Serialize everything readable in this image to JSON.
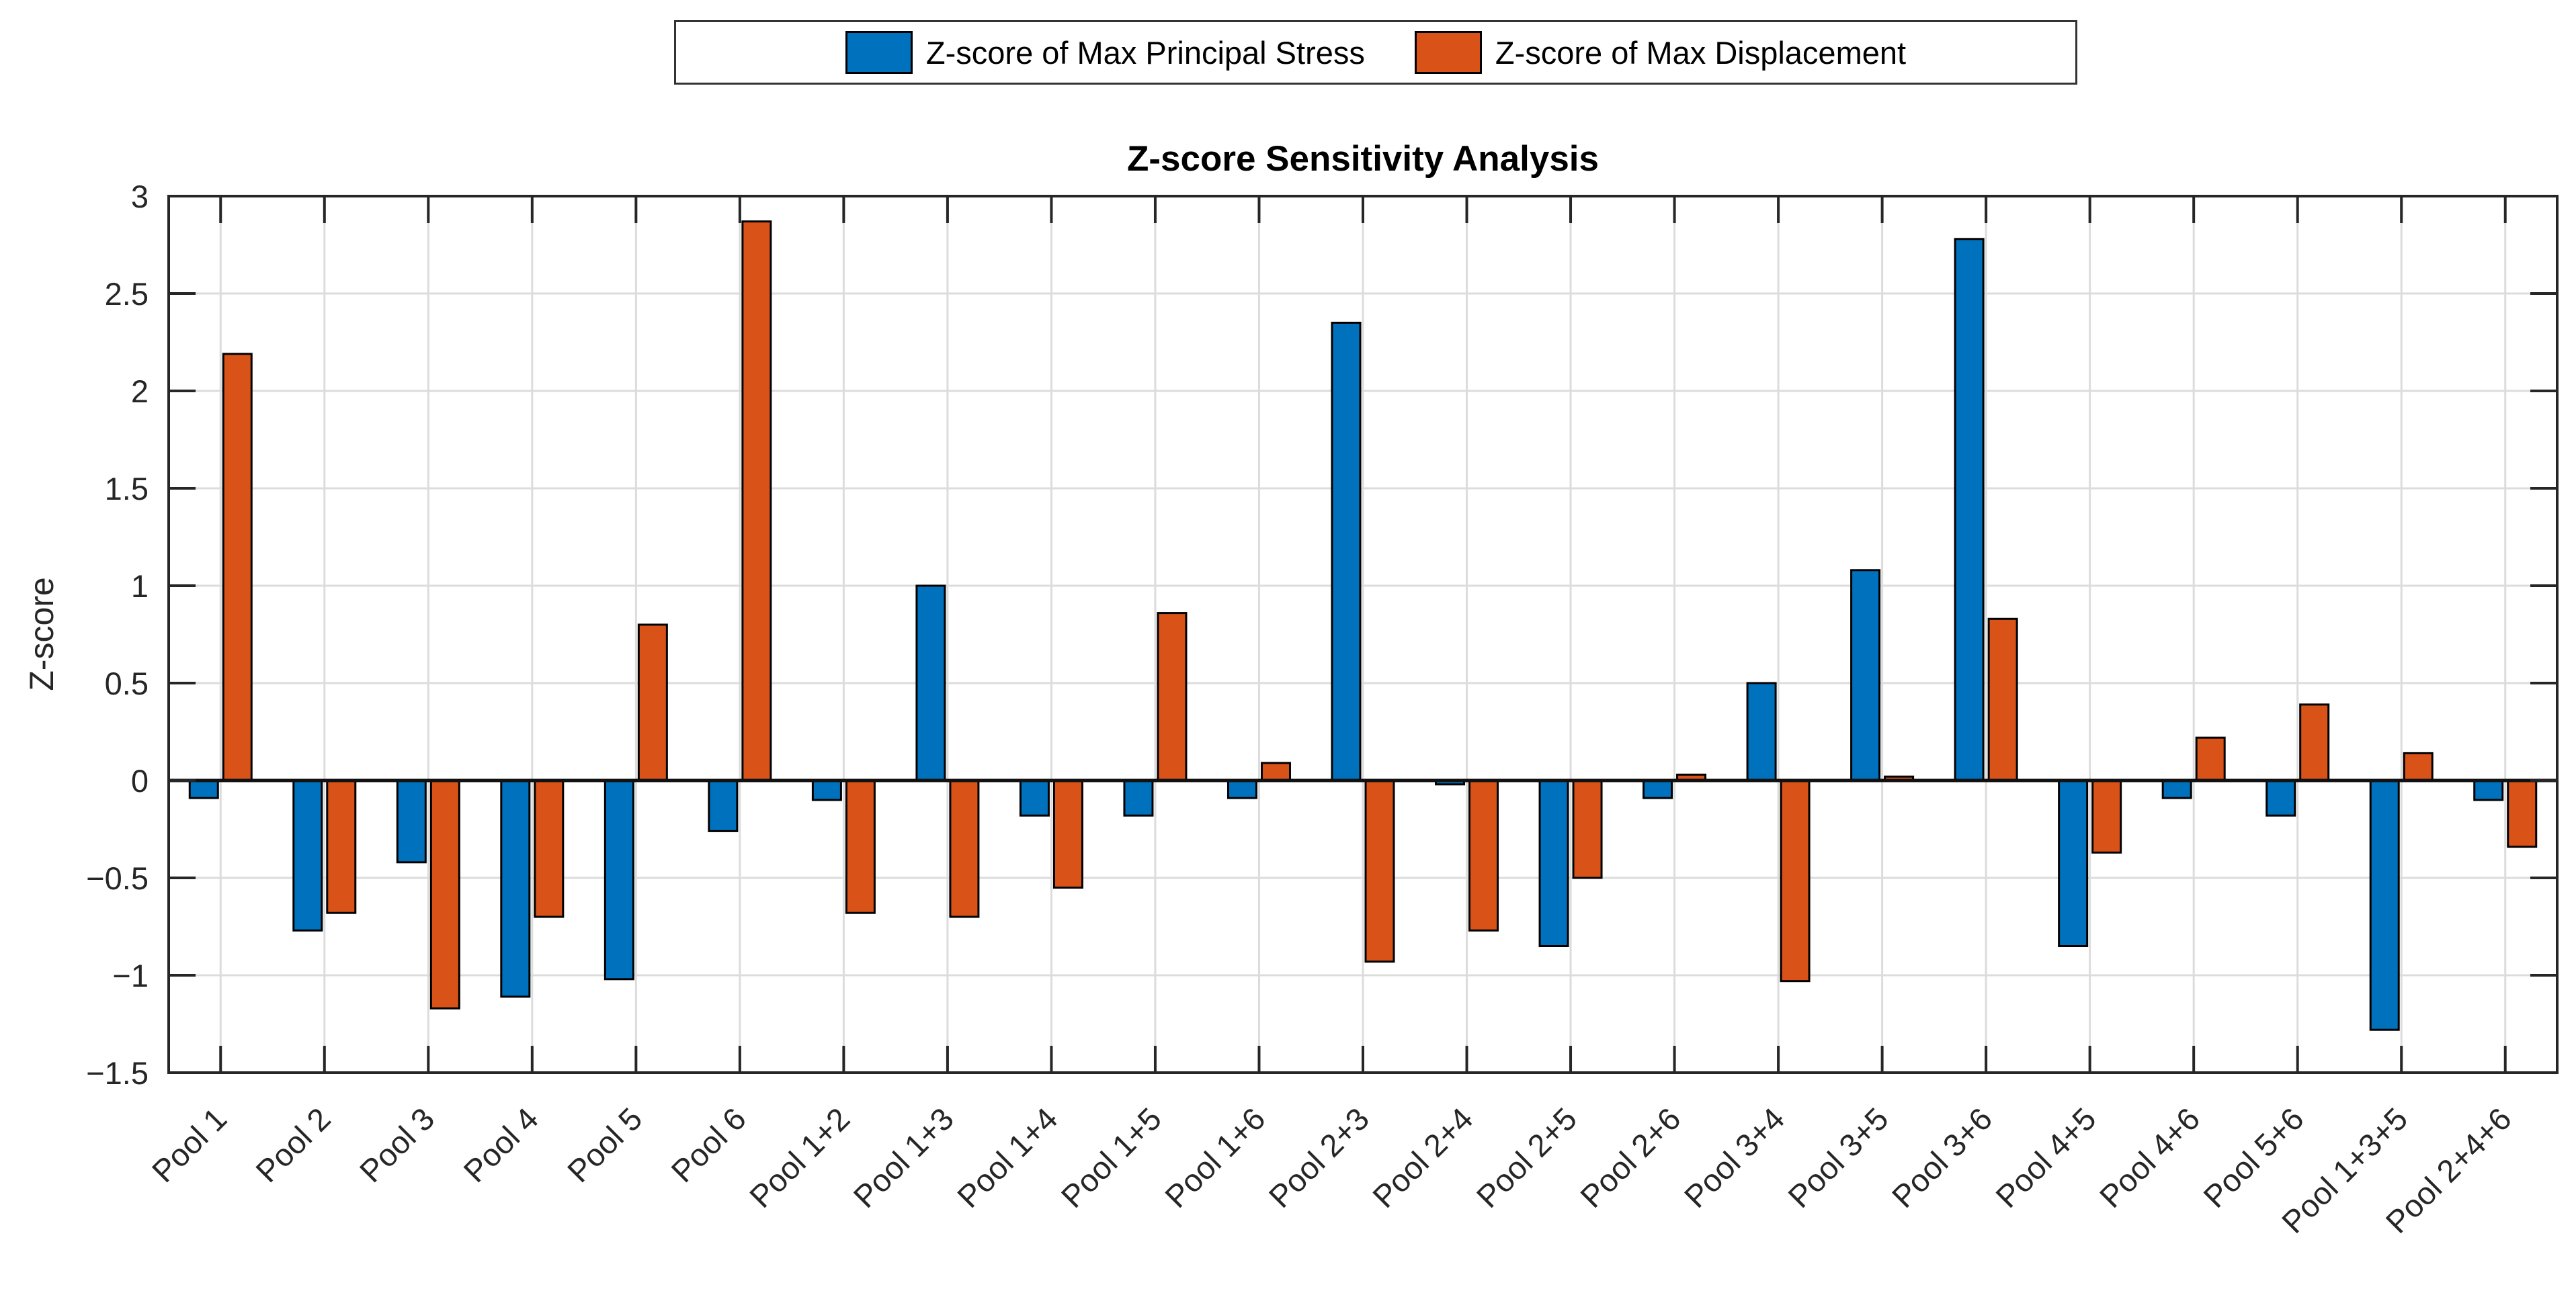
{
  "chart_data": {
    "type": "bar",
    "title": "Z-score Sensitivity Analysis",
    "ylabel": "Z-score",
    "xlabel": "",
    "ylim": [
      -1.5,
      3
    ],
    "ytick_step": 0.5,
    "ytick_labels": [
      "3",
      "2.5",
      "2",
      "1.5",
      "1",
      "0.5",
      "0",
      "-0.5",
      "-1",
      "-1.5"
    ],
    "grid": true,
    "legend_position": "top-center",
    "categories": [
      "Pool 1",
      "Pool 2",
      "Pool 3",
      "Pool 4",
      "Pool 5",
      "Pool 6",
      "Pool 1+2",
      "Pool 1+3",
      "Pool 1+4",
      "Pool 1+5",
      "Pool 1+6",
      "Pool 2+3",
      "Pool 2+4",
      "Pool 2+5",
      "Pool 2+6",
      "Pool 3+4",
      "Pool 3+5",
      "Pool 3+6",
      "Pool 4+5",
      "Pool 4+6",
      "Pool 5+6",
      "Pool 1+3+5",
      "Pool 2+4+6"
    ],
    "series": [
      {
        "name": "Z-score of Max Principal Stress",
        "color": "#0072BD",
        "values": [
          -0.09,
          -0.77,
          -0.42,
          -1.11,
          -1.02,
          -0.26,
          -0.1,
          1.0,
          -0.18,
          -0.18,
          -0.09,
          2.35,
          -0.02,
          -0.85,
          -0.09,
          0.5,
          1.08,
          2.78,
          -0.85,
          -0.09,
          -0.18,
          -1.28,
          -0.1
        ]
      },
      {
        "name": "Z-score of Max Displacement",
        "color": "#D95319",
        "values": [
          2.19,
          -0.68,
          -1.17,
          -0.7,
          0.8,
          2.87,
          -0.68,
          -0.7,
          -0.55,
          0.86,
          0.09,
          -0.93,
          -0.77,
          -0.5,
          0.03,
          -1.03,
          0.02,
          0.83,
          -0.37,
          0.22,
          0.39,
          0.14,
          -0.34
        ]
      }
    ],
    "colors": {
      "axis": "#262626",
      "grid": "#DCDCDC",
      "baseline": "#111111",
      "bar_edge": "#000000",
      "background": "#FFFFFF"
    }
  }
}
